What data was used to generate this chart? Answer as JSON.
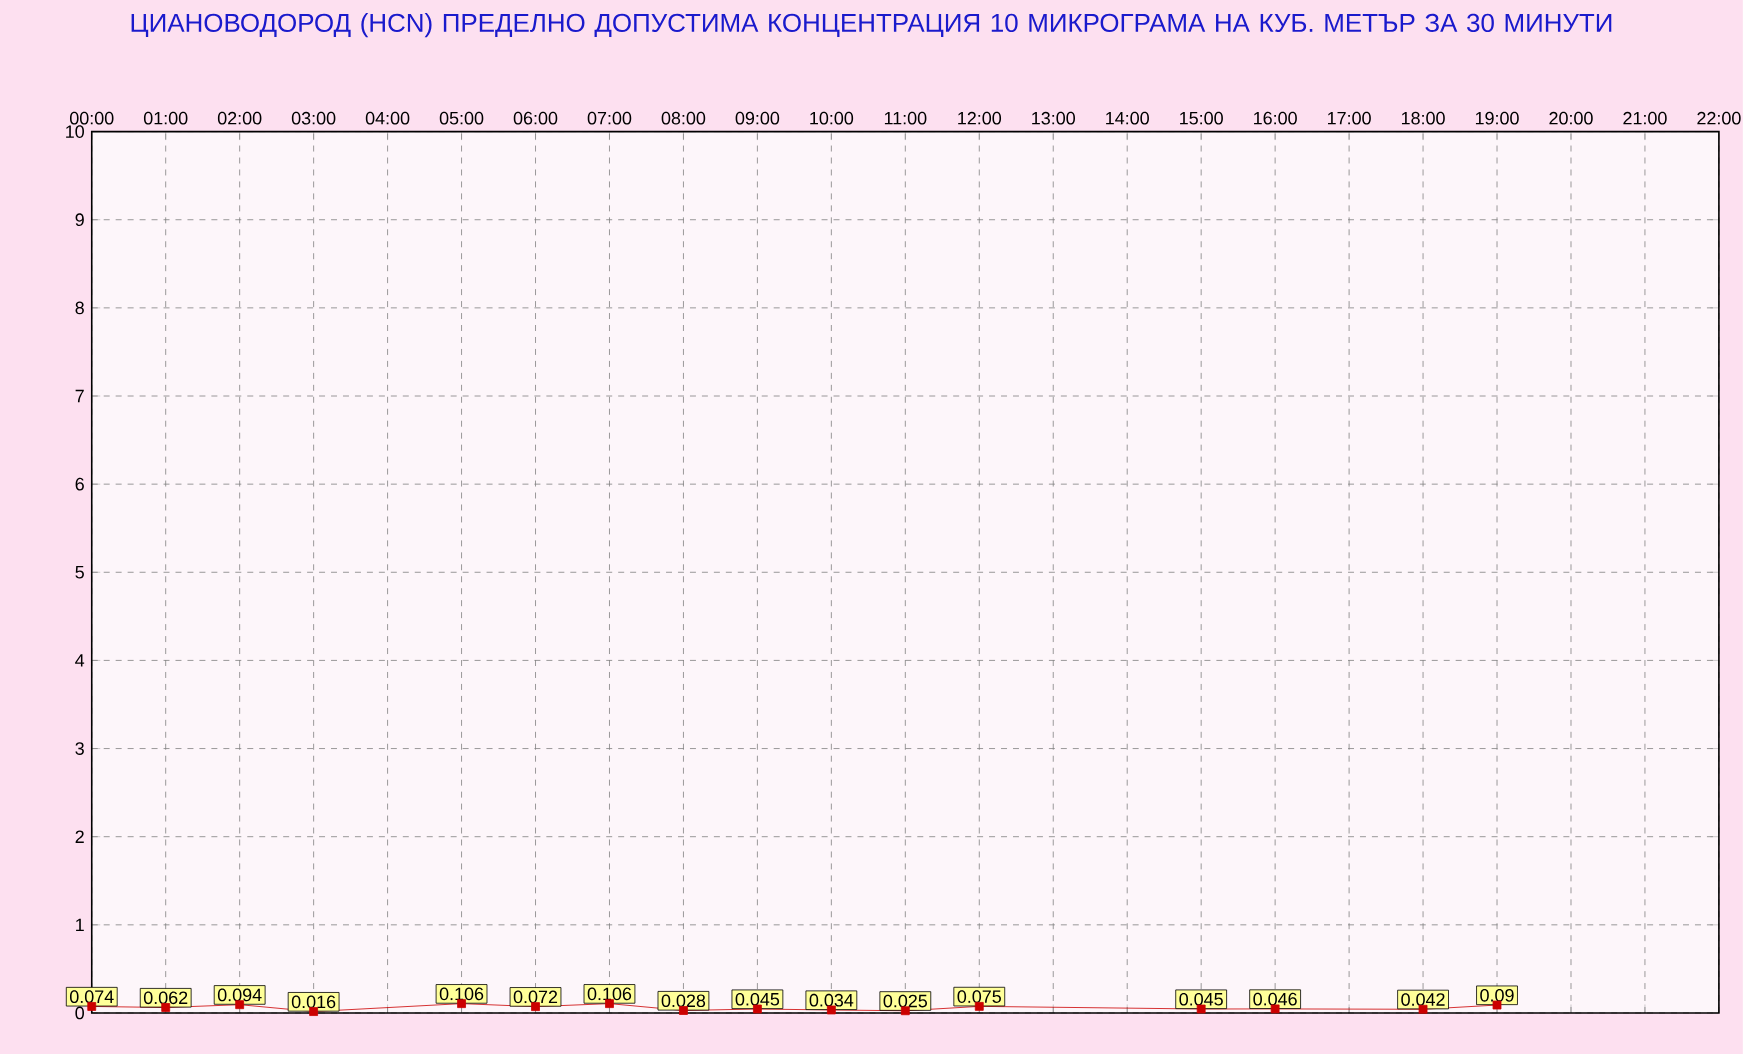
{
  "chart_data": {
    "type": "line",
    "title": "ЦИАНОВОДОРОД      (HCN)    ПРЕДЕЛНО ДОПУСТИМА КОНЦЕНТРАЦИЯ 10 МИКРОГРАМА  НА КУБ. МЕТЪР ЗА 30 МИНУТИ",
    "x": [
      0,
      1,
      2,
      3,
      5,
      6,
      7,
      8,
      9,
      10,
      11,
      12,
      15,
      16,
      18,
      19
    ],
    "values": [
      0.074,
      0.062,
      0.094,
      0.016,
      0.106,
      0.072,
      0.106,
      0.028,
      0.045,
      0.034,
      0.025,
      0.075,
      0.045,
      0.046,
      0.042,
      0.09
    ],
    "color": "#cc0000",
    "marker": "square",
    "data_labels": true,
    "grid": true,
    "xlim": [
      0,
      22
    ],
    "xticks": [
      {
        "value": 0,
        "label": "00:00"
      },
      {
        "value": 1,
        "label": "01:00"
      },
      {
        "value": 2,
        "label": "02:00"
      },
      {
        "value": 3,
        "label": "03:00"
      },
      {
        "value": 4,
        "label": "04:00"
      },
      {
        "value": 5,
        "label": "05:00"
      },
      {
        "value": 6,
        "label": "06:00"
      },
      {
        "value": 7,
        "label": "07:00"
      },
      {
        "value": 8,
        "label": "08:00"
      },
      {
        "value": 9,
        "label": "09:00"
      },
      {
        "value": 10,
        "label": "10:00"
      },
      {
        "value": 11,
        "label": "11:00"
      },
      {
        "value": 12,
        "label": "12:00"
      },
      {
        "value": 13,
        "label": "13:00"
      },
      {
        "value": 14,
        "label": "14:00"
      },
      {
        "value": 15,
        "label": "15:00"
      },
      {
        "value": 16,
        "label": "16:00"
      },
      {
        "value": 17,
        "label": "17:00"
      },
      {
        "value": 18,
        "label": "18:00"
      },
      {
        "value": 19,
        "label": "19:00"
      },
      {
        "value": 20,
        "label": "20:00"
      },
      {
        "value": 21,
        "label": "21:00"
      },
      {
        "value": 22,
        "label": "22:00"
      }
    ],
    "ylim": [
      0,
      10
    ],
    "yticks": [
      0,
      1,
      2,
      3,
      4,
      5,
      6,
      7,
      8,
      9,
      10
    ]
  }
}
